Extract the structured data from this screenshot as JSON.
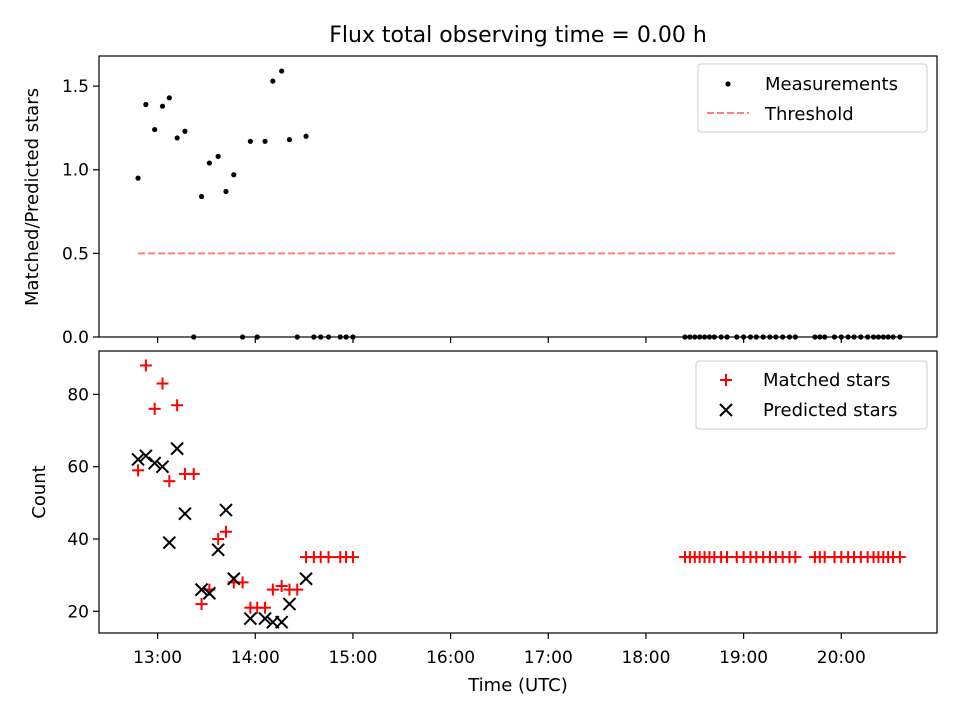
{
  "chart_data": [
    {
      "type": "scatter",
      "title": "Flux total observing time = 0.00 h",
      "xlabel": "",
      "ylabel": "Matched/Predicted stars",
      "xlim": [
        12.4,
        20.98
      ],
      "ylim": [
        0.0,
        1.68
      ],
      "yticks": [
        0.0,
        0.5,
        1.0,
        1.5
      ],
      "ytick_labels": [
        "0.0",
        "0.5",
        "1.0",
        "1.5"
      ],
      "legend": "top-right",
      "series": [
        {
          "name": "Measurements",
          "marker": "dot",
          "color": "#000000",
          "x": [
            12.8,
            12.88,
            12.97,
            13.05,
            13.12,
            13.2,
            13.28,
            13.45,
            13.53,
            13.62,
            13.7,
            13.78,
            13.95,
            14.1,
            14.18,
            14.27,
            14.35,
            14.52,
            13.37,
            13.87,
            14.02,
            14.43,
            14.6,
            14.67,
            14.75,
            14.87,
            14.93,
            15.0,
            18.4,
            18.45,
            18.5,
            18.55,
            18.6,
            18.65,
            18.7,
            18.77,
            18.83,
            18.93,
            19.0,
            19.07,
            19.13,
            19.2,
            19.27,
            19.33,
            19.4,
            19.47,
            19.53,
            19.73,
            19.78,
            19.83,
            19.93,
            20.0,
            20.07,
            20.13,
            20.2,
            20.27,
            20.33,
            20.38,
            20.43,
            20.48,
            20.53,
            20.6
          ],
          "y": [
            0.95,
            1.39,
            1.24,
            1.38,
            1.43,
            1.19,
            1.23,
            0.84,
            1.04,
            1.08,
            0.87,
            0.97,
            1.17,
            1.17,
            1.53,
            1.59,
            1.18,
            1.2,
            0.0,
            0.0,
            0.0,
            0.0,
            0.0,
            0.0,
            0.0,
            0.0,
            0.0,
            0.0,
            0.0,
            0.0,
            0.0,
            0.0,
            0.0,
            0.0,
            0.0,
            0.0,
            0.0,
            0.0,
            0.0,
            0.0,
            0.0,
            0.0,
            0.0,
            0.0,
            0.0,
            0.0,
            0.0,
            0.0,
            0.0,
            0.0,
            0.0,
            0.0,
            0.0,
            0.0,
            0.0,
            0.0,
            0.0,
            0.0,
            0.0,
            0.0,
            0.0,
            0.0
          ]
        },
        {
          "name": "Threshold",
          "marker": "dashed-line",
          "color": "#ff7f7f",
          "x": [
            12.8,
            20.58
          ],
          "y": [
            0.5,
            0.5
          ]
        }
      ]
    },
    {
      "type": "scatter",
      "title": "",
      "xlabel": "Time (UTC)",
      "ylabel": "Count",
      "xlim": [
        12.4,
        20.98
      ],
      "ylim": [
        14,
        92
      ],
      "yticks": [
        20,
        40,
        60,
        80
      ],
      "ytick_labels": [
        "20",
        "40",
        "60",
        "80"
      ],
      "xticks": [
        13,
        14,
        15,
        16,
        17,
        18,
        19,
        20
      ],
      "xtick_labels": [
        "13:00",
        "14:00",
        "15:00",
        "16:00",
        "17:00",
        "18:00",
        "19:00",
        "20:00"
      ],
      "legend": "top-right",
      "series": [
        {
          "name": "Matched stars",
          "marker": "plus",
          "color": "#ff0000",
          "x": [
            12.8,
            12.88,
            12.97,
            13.05,
            13.12,
            13.2,
            13.28,
            13.37,
            13.45,
            13.53,
            13.62,
            13.7,
            13.78,
            13.87,
            13.95,
            14.02,
            14.1,
            14.18,
            14.27,
            14.35,
            14.43,
            14.52,
            14.6,
            14.67,
            14.75,
            14.87,
            14.93,
            15.0,
            18.4,
            18.45,
            18.5,
            18.55,
            18.6,
            18.65,
            18.7,
            18.77,
            18.83,
            18.93,
            19.0,
            19.07,
            19.13,
            19.2,
            19.27,
            19.33,
            19.4,
            19.47,
            19.53,
            19.73,
            19.78,
            19.83,
            19.93,
            20.0,
            20.07,
            20.13,
            20.2,
            20.27,
            20.33,
            20.38,
            20.43,
            20.48,
            20.53,
            20.6
          ],
          "y": [
            59,
            88,
            76,
            83,
            56,
            77,
            58,
            58,
            22,
            26,
            40,
            42,
            28,
            28,
            21,
            21,
            21,
            26,
            27,
            26,
            26,
            35,
            35,
            35,
            35,
            35,
            35,
            35,
            35,
            35,
            35,
            35,
            35,
            35,
            35,
            35,
            35,
            35,
            35,
            35,
            35,
            35,
            35,
            35,
            35,
            35,
            35,
            35,
            35,
            35,
            35,
            35,
            35,
            35,
            35,
            35,
            35,
            35,
            35,
            35,
            35,
            35
          ]
        },
        {
          "name": "Predicted stars",
          "marker": "x",
          "color": "#000000",
          "x": [
            12.8,
            12.88,
            12.97,
            13.05,
            13.12,
            13.2,
            13.28,
            13.45,
            13.53,
            13.62,
            13.7,
            13.78,
            13.95,
            14.1,
            14.18,
            14.27,
            14.35,
            14.52
          ],
          "y": [
            62,
            63,
            61,
            60,
            39,
            65,
            47,
            26,
            25,
            37,
            48,
            29,
            18,
            18,
            17,
            17,
            22,
            29
          ]
        }
      ]
    }
  ]
}
